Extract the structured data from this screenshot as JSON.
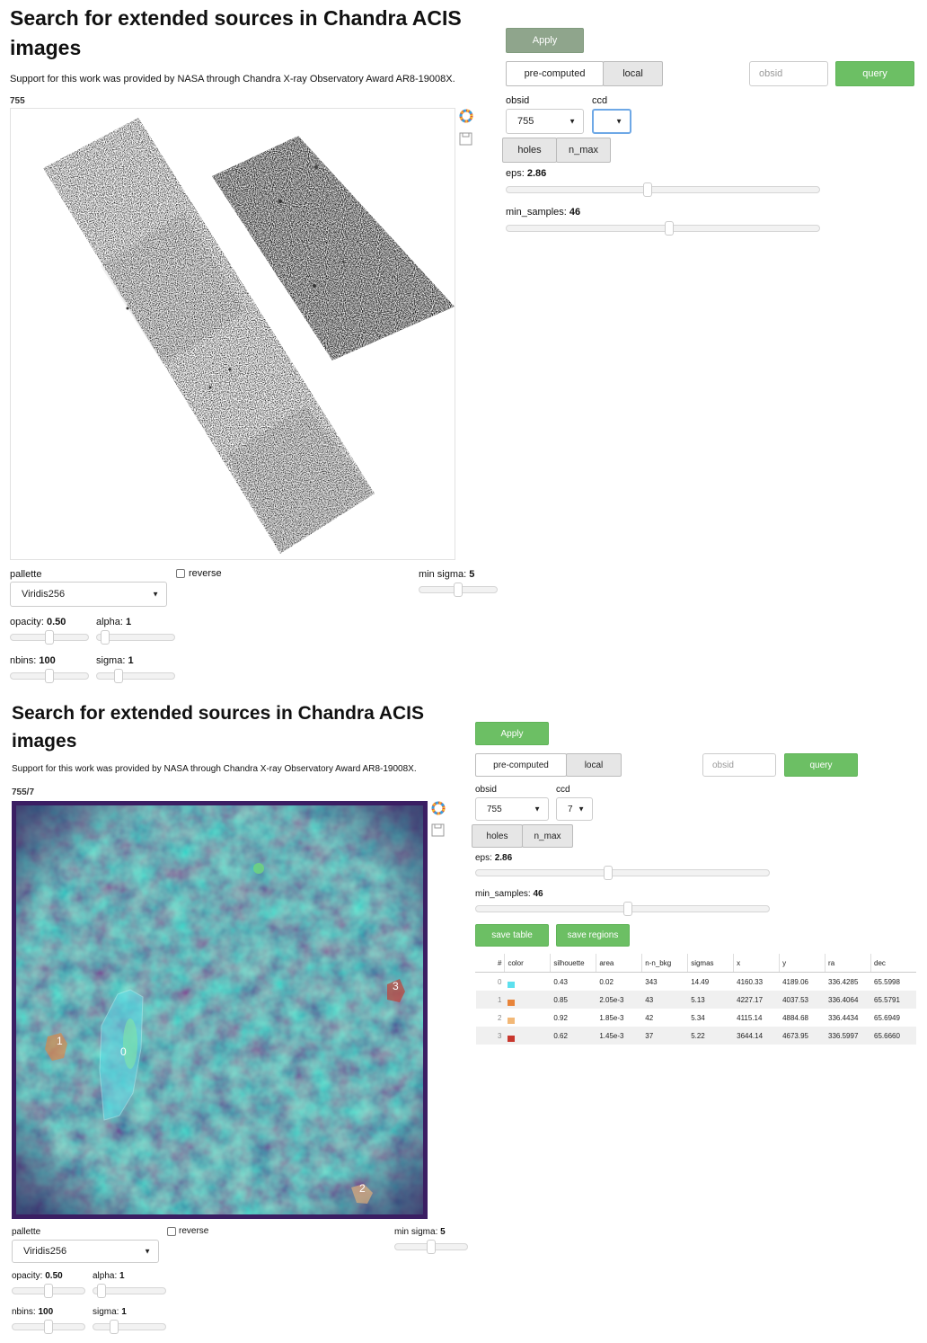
{
  "panel1": {
    "title_line1": "Search for extended sources in Chandra ACIS",
    "title_line2": "images",
    "support": "Support for this work was provided by NASA through Chandra X-ray Observatory Award AR8-19008X.",
    "plot_label": "755",
    "apply": "Apply",
    "mode_precomputed": "pre-computed",
    "mode_local": "local",
    "obsid_placeholder": "obsid",
    "query": "query",
    "obsid_label": "obsid",
    "obsid_value": "755",
    "ccd_label": "ccd",
    "ccd_value": "",
    "holes": "holes",
    "n_max": "n_max",
    "eps_label": "eps: ",
    "eps_value": "2.86",
    "eps_fraction": 0.45,
    "min_samples_label": "min_samples: ",
    "min_samples_value": "46",
    "min_samples_fraction": 0.52,
    "pallette_label": "pallette",
    "pallette_value": "Viridis256",
    "reverse_label": "reverse",
    "min_sigma_label": "min sigma: ",
    "min_sigma_value": "5",
    "min_sigma_fraction": 0.5,
    "opacity_label": "opacity: ",
    "opacity_value": "0.50",
    "opacity_fraction": 0.5,
    "alpha_label": "alpha: ",
    "alpha_value": "1",
    "alpha_fraction": 0.05,
    "nbins_label": "nbins: ",
    "nbins_value": "100",
    "nbins_fraction": 0.5,
    "sigma_label": "sigma: ",
    "sigma_value": "1",
    "sigma_fraction": 0.25
  },
  "panel2": {
    "title_line1": "Search for extended sources in Chandra ACIS",
    "title_line2": "images",
    "support": "Support for this work was provided by NASA through Chandra X-ray Observatory Award AR8-19008X.",
    "plot_label": "755/7",
    "apply": "Apply",
    "mode_precomputed": "pre-computed",
    "mode_local": "local",
    "obsid_placeholder": "obsid",
    "query": "query",
    "obsid_label": "obsid",
    "obsid_value": "755",
    "ccd_label": "ccd",
    "ccd_value": "7",
    "holes": "holes",
    "n_max": "n_max",
    "eps_label": "eps: ",
    "eps_value": "2.86",
    "eps_fraction": 0.45,
    "min_samples_label": "min_samples: ",
    "min_samples_value": "46",
    "min_samples_fraction": 0.52,
    "save_table": "save table",
    "save_regions": "save regions",
    "pallette_label": "pallette",
    "pallette_value": "Viridis256",
    "reverse_label": "reverse",
    "min_sigma_label": "min sigma: ",
    "min_sigma_value": "5",
    "min_sigma_fraction": 0.5,
    "opacity_label": "opacity: ",
    "opacity_value": "0.50",
    "opacity_fraction": 0.5,
    "alpha_label": "alpha: ",
    "alpha_value": "1",
    "alpha_fraction": 0.05,
    "nbins_label": "nbins: ",
    "nbins_value": "100",
    "nbins_fraction": 0.5,
    "sigma_label": "sigma: ",
    "sigma_value": "1",
    "sigma_fraction": 0.25,
    "source_labels": [
      "0",
      "1",
      "2",
      "3"
    ],
    "table": {
      "headers": [
        "#",
        "color",
        "silhouette",
        "area",
        "n-n_bkg",
        "sigmas",
        "x",
        "y",
        "ra",
        "dec"
      ],
      "rows": [
        {
          "idx": "0",
          "color": "#5de0ee",
          "silhouette": "0.43",
          "area": "0.02",
          "n_bkg": "343",
          "sigmas": "14.49",
          "x": "4160.33",
          "y": "4189.06",
          "ra": "336.4285",
          "dec": "65.5998"
        },
        {
          "idx": "1",
          "color": "#e8843a",
          "silhouette": "0.85",
          "area": "2.05e-3",
          "n_bkg": "43",
          "sigmas": "5.13",
          "x": "4227.17",
          "y": "4037.53",
          "ra": "336.4064",
          "dec": "65.5791"
        },
        {
          "idx": "2",
          "color": "#f2b877",
          "silhouette": "0.92",
          "area": "1.85e-3",
          "n_bkg": "42",
          "sigmas": "5.34",
          "x": "4115.14",
          "y": "4884.68",
          "ra": "336.4434",
          "dec": "65.6949"
        },
        {
          "idx": "3",
          "color": "#c8372d",
          "silhouette": "0.62",
          "area": "1.45e-3",
          "n_bkg": "37",
          "sigmas": "5.22",
          "x": "3644.14",
          "y": "4673.95",
          "ra": "336.5997",
          "dec": "65.6660"
        }
      ]
    }
  },
  "colors": {
    "green": "#6cbf64",
    "apply_gray": "#8fa58c"
  }
}
